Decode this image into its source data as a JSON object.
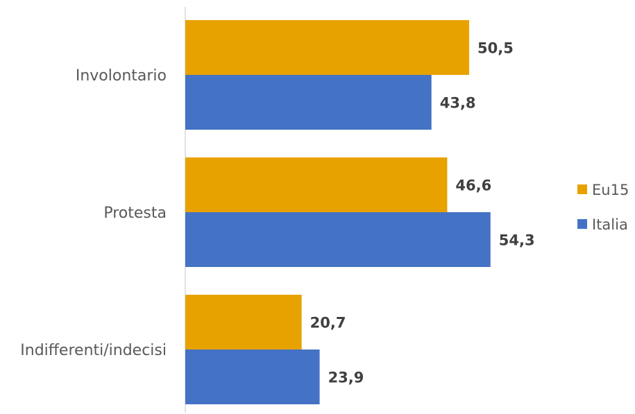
{
  "chart_data": {
    "type": "bar",
    "orientation": "horizontal",
    "categories": [
      "Involontario",
      "Protesta",
      "Indifferenti/indecisi"
    ],
    "series": [
      {
        "name": "Eu15",
        "color": "#E8A200",
        "values": [
          50.5,
          46.6,
          20.7
        ],
        "labels": [
          "50,5",
          "46,6",
          "20,7"
        ]
      },
      {
        "name": "Italia",
        "color": "#4472C4",
        "values": [
          43.8,
          54.3,
          23.9
        ],
        "labels": [
          "43,8",
          "54,3",
          "23,9"
        ]
      }
    ],
    "title": "",
    "xlabel": "",
    "ylabel": "",
    "xlim": [
      0,
      60
    ],
    "grid": false,
    "legend_position": "right",
    "axis_color": "#D9D9D9"
  }
}
